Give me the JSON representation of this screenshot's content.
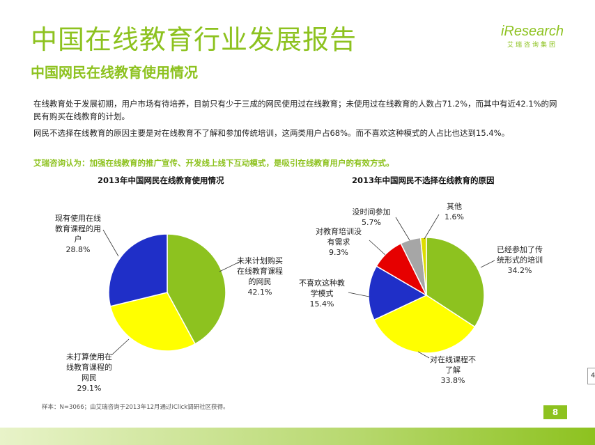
{
  "header": {
    "title": "中国在线教育行业发展报告",
    "subtitle": "中国网民在线教育使用情况",
    "logo_main": "iResearch",
    "logo_sub": "艾瑞咨询集团"
  },
  "body": {
    "para1": "在线教育处于发展初期，用户市场有待培养，目前只有少于三成的网民使用过在线教育；未使用过在线教育的人数占71.2%，而其中有近42.1%的网民有购买在线教育的计划。",
    "para2": "网民不选择在线教育的原因主要是对在线教育不了解和参加传统培训，这两类用户占68%。而不喜欢这种模式的人占比也达到15.4%。",
    "note": "艾瑞咨询认为：加强在线教育的推广宣传、开发线上线下互动模式，是吸引在线教育用户的有效方式。"
  },
  "footer": {
    "source": "样本：N=3066；由艾瑞咨询于2013年12月通过iClick调研社区获得。",
    "page": "8",
    "edge_tab": "4"
  },
  "colors": {
    "green": "#8dc21f",
    "yellow": "#ffff00",
    "blue": "#1f2fc8",
    "red": "#e60000",
    "gray": "#a6a6a6",
    "lime": "#dddd00"
  },
  "chart_data": [
    {
      "type": "pie",
      "title": "2013年中国网民在线教育使用情况",
      "slices": [
        {
          "label": "未来计划购买在线教育课程的网民",
          "value": 42.1,
          "value_text": "42.1%",
          "label_lines": [
            "未来计划购买",
            "在线教育课程",
            "的网民"
          ],
          "color": "#8dc21f"
        },
        {
          "label": "未打算使用在线教育课程的网民",
          "value": 29.1,
          "value_text": "29.1%",
          "label_lines": [
            "未打算使用在",
            "线教育课程的",
            "网民"
          ],
          "color": "#ffff00"
        },
        {
          "label": "现有使用在线教育课程的用户",
          "value": 28.8,
          "value_text": "28.8%",
          "label_lines": [
            "现有使用在线",
            "教育课程的用",
            "户"
          ],
          "color": "#1f2fc8"
        }
      ]
    },
    {
      "type": "pie",
      "title": "2013年中国网民不选择在线教育的原因",
      "slices": [
        {
          "label": "已经参加了传统形式的培训",
          "value": 34.2,
          "value_text": "34.2%",
          "label_lines": [
            "已经参加了传",
            "统形式的培训"
          ],
          "color": "#8dc21f"
        },
        {
          "label": "对在线课程不了解",
          "value": 33.8,
          "value_text": "33.8%",
          "label_lines": [
            "对在线课程不",
            "了解"
          ],
          "color": "#ffff00"
        },
        {
          "label": "不喜欢这种教学模式",
          "value": 15.4,
          "value_text": "15.4%",
          "label_lines": [
            "不喜欢这种教",
            "学模式"
          ],
          "color": "#1f2fc8"
        },
        {
          "label": "对教育培训没有需求",
          "value": 9.3,
          "value_text": "9.3%",
          "label_lines": [
            "对教育培训没",
            "有需求"
          ],
          "color": "#e60000"
        },
        {
          "label": "没时间参加",
          "value": 5.7,
          "value_text": "5.7%",
          "label_lines": [
            "没时间参加"
          ],
          "color": "#a6a6a6"
        },
        {
          "label": "其他",
          "value": 1.6,
          "value_text": "1.6%",
          "label_lines": [
            "其他"
          ],
          "color": "#dddd00"
        }
      ]
    }
  ]
}
